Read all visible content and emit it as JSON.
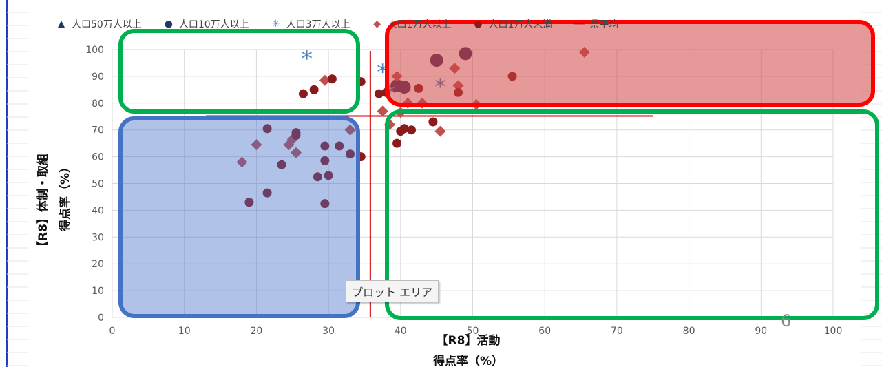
{
  "chart_data": {
    "type": "scatter",
    "title": "",
    "xlabel_line1": "【R8】活動",
    "xlabel_line2": "得点率（%）",
    "ylabel_line1": "【R8】体制・取組",
    "ylabel_line2": "得点率（%）",
    "xlim": [
      0,
      100
    ],
    "ylim": [
      0,
      100
    ],
    "x_ticks": [
      "0",
      "10",
      "20",
      "30",
      "40",
      "50",
      "60",
      "70",
      "80",
      "90",
      "100"
    ],
    "y_ticks": [
      "0",
      "10",
      "20",
      "30",
      "40",
      "50",
      "60",
      "70",
      "80",
      "90",
      "100"
    ],
    "grid": true,
    "legend_position": "top",
    "average": {
      "name": "県平均",
      "x": 35.8,
      "y": 75.2,
      "color": "#cc0000"
    },
    "series": [
      {
        "name": "人口50万人以上",
        "marker": "triangle",
        "color": "#1f3864",
        "points": []
      },
      {
        "name": "人口10万人以上",
        "marker": "circle-large",
        "color": "#4a2a5a",
        "points": [
          [
            45,
            96
          ],
          [
            49,
            98.5
          ],
          [
            40.5,
            86
          ],
          [
            39.5,
            86.5
          ]
        ]
      },
      {
        "name": "人口3万人以上",
        "marker": "asterisk",
        "color": "#4f81bd",
        "points": [
          [
            27,
            98
          ],
          [
            37.5,
            93
          ],
          [
            45.5,
            87.5
          ],
          [
            38.5,
            85
          ]
        ]
      },
      {
        "name": "人口1万人以上",
        "marker": "diamond",
        "color": "#c0504d",
        "points": [
          [
            65.5,
            99
          ],
          [
            47.5,
            93
          ],
          [
            39.5,
            90
          ],
          [
            29.5,
            88.5
          ],
          [
            48,
            86.5
          ],
          [
            41,
            80
          ],
          [
            43,
            80
          ],
          [
            50.5,
            79.5
          ],
          [
            37.5,
            77
          ],
          [
            40,
            76.5
          ],
          [
            38.5,
            72
          ],
          [
            45.5,
            69.5
          ],
          [
            33,
            70
          ],
          [
            20,
            64.5
          ],
          [
            24.5,
            64.5
          ],
          [
            25,
            66.5
          ],
          [
            25.5,
            61.5
          ],
          [
            18,
            58
          ]
        ]
      },
      {
        "name": "人口1万人未満",
        "marker": "circle",
        "color": "#8b1a1a",
        "points": [
          [
            55.5,
            90
          ],
          [
            30.5,
            89
          ],
          [
            34.5,
            88
          ],
          [
            38,
            84
          ],
          [
            37,
            83.5
          ],
          [
            42.5,
            85.5
          ],
          [
            48,
            84
          ],
          [
            28,
            85
          ],
          [
            26.5,
            83.5
          ],
          [
            44.5,
            73
          ],
          [
            40.5,
            70.5
          ],
          [
            40,
            69.5
          ],
          [
            41.5,
            70
          ],
          [
            39.5,
            65
          ],
          [
            21.5,
            70.5
          ],
          [
            25.5,
            69
          ],
          [
            25.5,
            68
          ],
          [
            29.5,
            64
          ],
          [
            31.5,
            64
          ],
          [
            33,
            61
          ],
          [
            34.5,
            60
          ],
          [
            29.5,
            58.5
          ],
          [
            23.5,
            57
          ],
          [
            28.5,
            52.5
          ],
          [
            30,
            53
          ],
          [
            21.5,
            46.5
          ],
          [
            19,
            43
          ],
          [
            29.5,
            42.5
          ]
        ]
      }
    ],
    "legend_entries": [
      {
        "label": "人口50万人以上",
        "glyph": "▲",
        "color": "#1f3864"
      },
      {
        "label": "人口10万人以上",
        "glyph": "●",
        "color": "#1f3864"
      },
      {
        "label": "人口3万人以上",
        "glyph": "✳",
        "color": "#4f81bd"
      },
      {
        "label": "人口1万人以上",
        "glyph": "◆",
        "color": "#c0504d"
      },
      {
        "label": "人口1万人未満",
        "glyph": "●",
        "color": "#8b1a1a"
      },
      {
        "label": "県平均",
        "glyph": "━━",
        "color": "#cc0000"
      }
    ],
    "highlight_regions": [
      {
        "id": "top-right",
        "fill": "rgba(207,70,70,0.55)",
        "stroke": "#ff0000"
      },
      {
        "id": "top-left",
        "fill": "none",
        "stroke": "#00b050"
      },
      {
        "id": "bottom-left",
        "fill": "rgba(70,110,200,0.42)",
        "stroke": "#4472c4"
      },
      {
        "id": "bottom-right",
        "fill": "none",
        "stroke": "#00b050"
      }
    ]
  },
  "tooltip_text": "プロット エリア",
  "slide_number": "6"
}
